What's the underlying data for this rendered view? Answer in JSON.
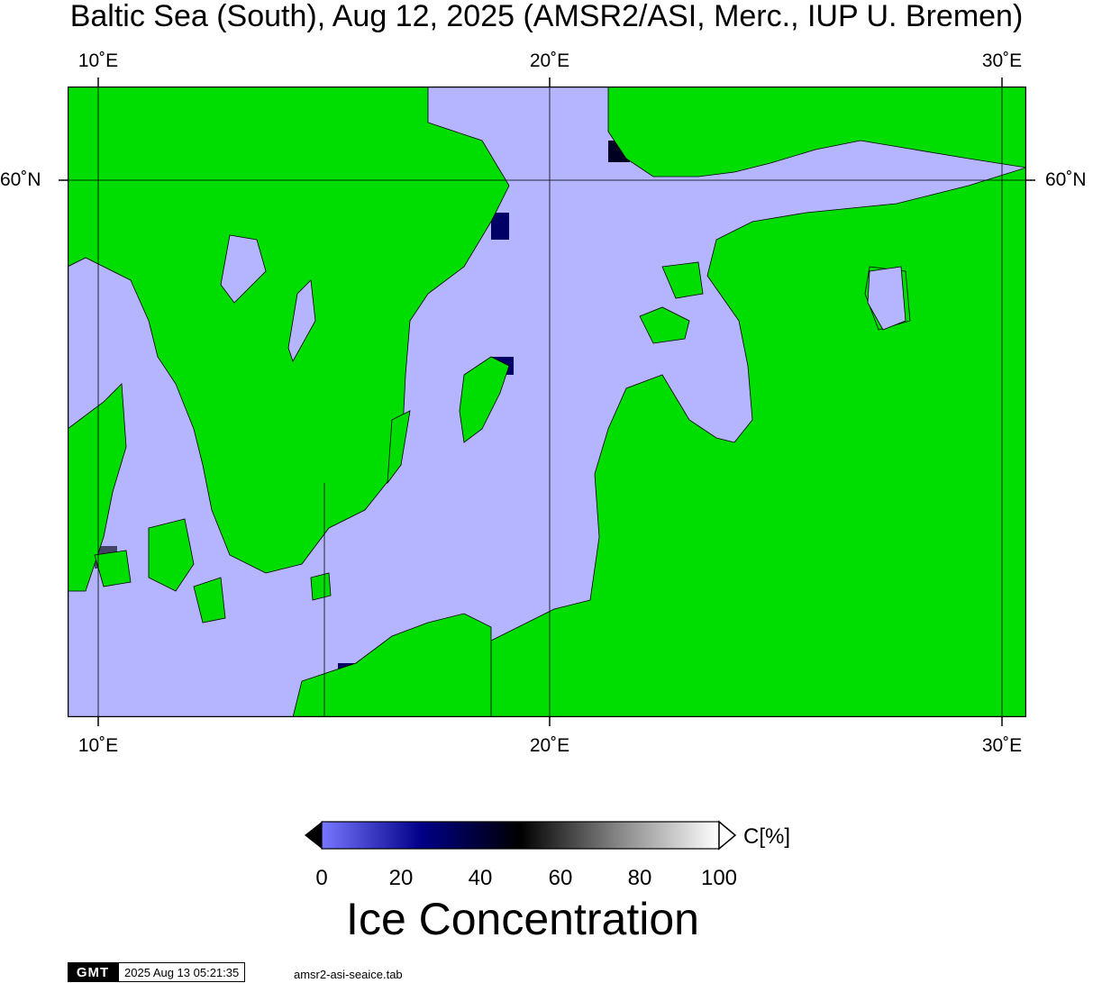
{
  "title": "Baltic Sea (South), Aug 12, 2025 (AMSR2/ASI, Merc., IUP U. Bremen)",
  "axes": {
    "lon_ticks_top": [
      "10˚E",
      "20˚E",
      "30˚E"
    ],
    "lon_ticks_bottom": [
      "10˚E",
      "20˚E",
      "30˚E"
    ],
    "lat_ticks_left": [
      "60˚N"
    ],
    "lat_ticks_right": [
      "60˚N"
    ]
  },
  "colors": {
    "land": "#00dd00",
    "open_water": "#b4b4ff",
    "frame": "#000000",
    "no_data": "#808080"
  },
  "colorbar": {
    "label": "C[%]",
    "ticks": [
      "0",
      "20",
      "40",
      "60",
      "80",
      "100"
    ],
    "range": [
      0,
      100
    ],
    "stops": [
      "#7777ff",
      "#000088",
      "#000000",
      "#888888",
      "#ffffff"
    ]
  },
  "legend_title": "Ice Concentration",
  "footer": {
    "logo": "GMT",
    "timestamp": "2025 Aug 13 05:21:35",
    "file": "amsr2-asi-seaice.tab"
  }
}
